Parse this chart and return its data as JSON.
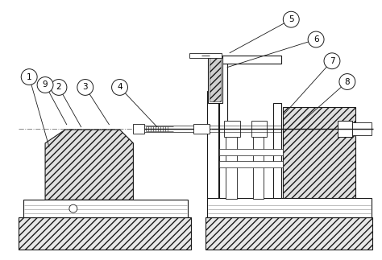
{
  "bg_color": "#ffffff",
  "lc": "#1a1a1a",
  "gray": "#cccccc",
  "dashdot": "#999999"
}
